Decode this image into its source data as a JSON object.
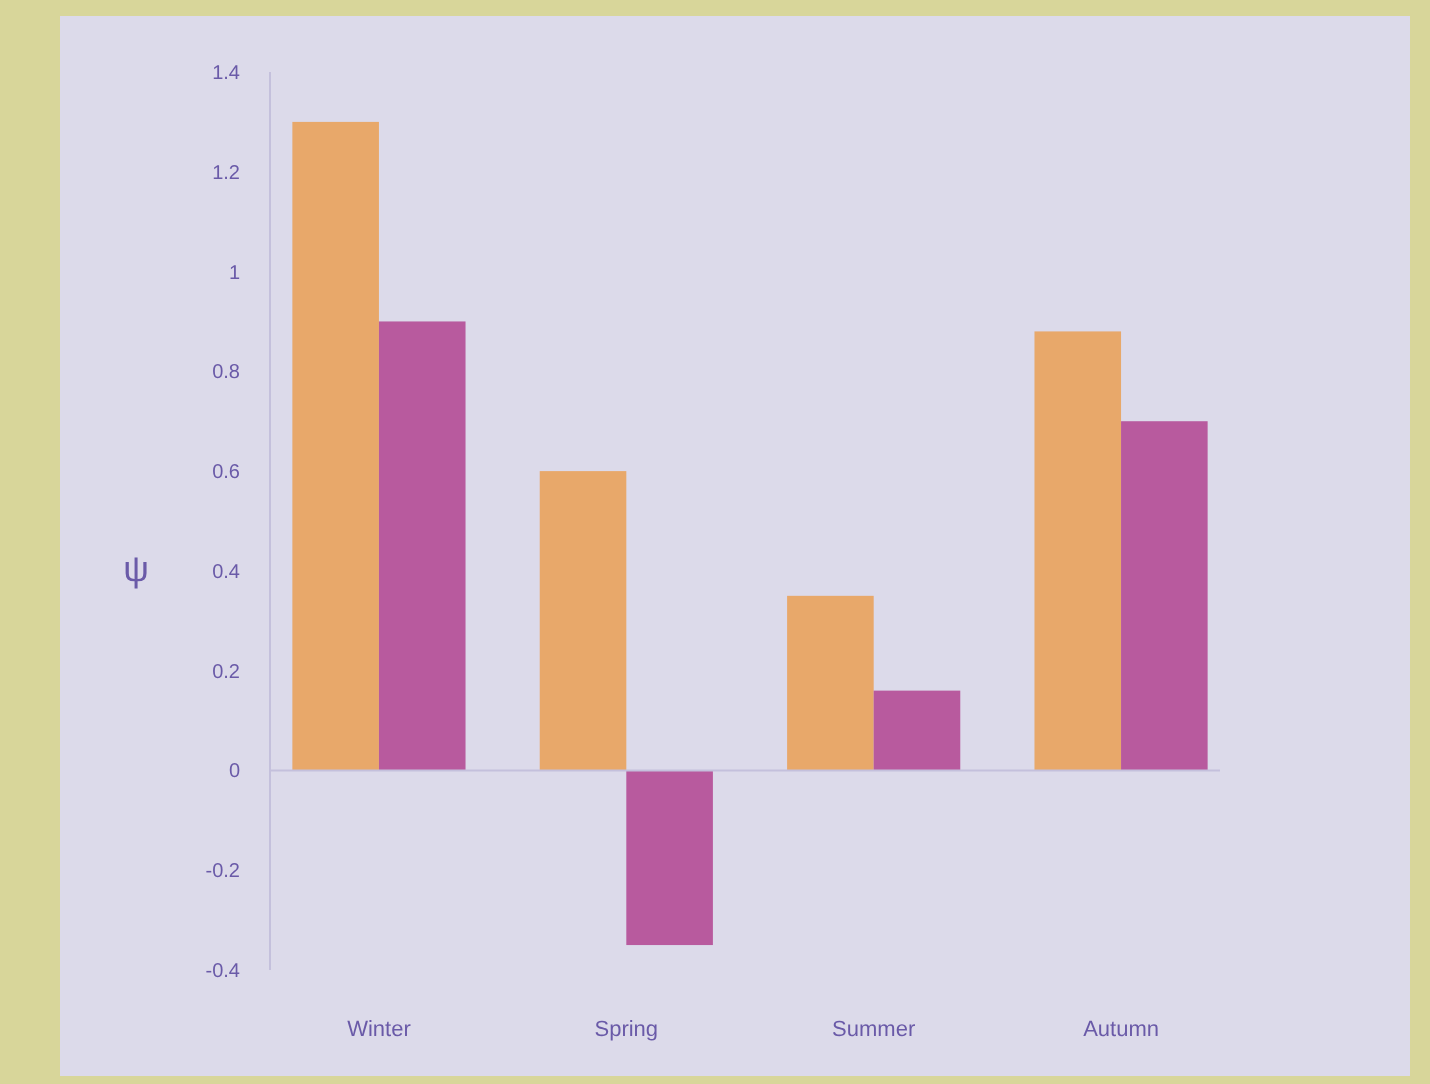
{
  "chart_data": {
    "type": "bar",
    "ylabel": "ψ",
    "categories": [
      "Winter",
      "Spring",
      "Summer",
      "Autumn"
    ],
    "series": [
      {
        "color": "#e8a86a",
        "values": [
          1.3,
          0.6,
          0.35,
          0.88
        ]
      },
      {
        "color": "#b85a9e",
        "values": [
          0.9,
          -0.35,
          0.16,
          0.7
        ]
      }
    ],
    "ylim": [
      -0.4,
      1.4
    ],
    "yticks": [
      -0.4,
      -0.2,
      0,
      0.2,
      0.4,
      0.6,
      0.8,
      1,
      1.2,
      1.4
    ]
  }
}
